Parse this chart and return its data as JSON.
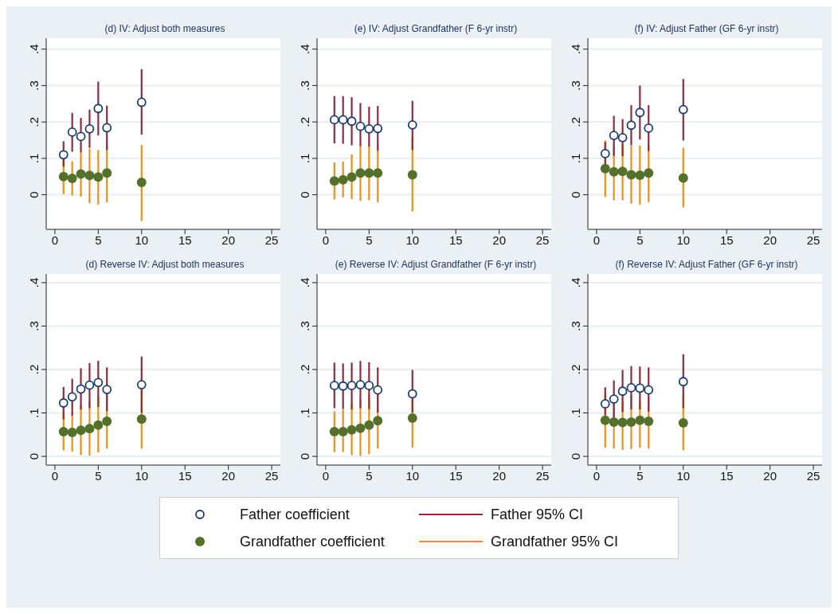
{
  "chart_data": [
    {
      "type": "scatter",
      "title": "(d) IV: Adjust both measures",
      "x": [
        1,
        2,
        3,
        4,
        5,
        6,
        10
      ],
      "xlim": [
        -1,
        26
      ],
      "xticks": [
        0,
        5,
        10,
        15,
        20,
        25
      ],
      "ylim": [
        -0.095,
        0.43
      ],
      "yticks": [
        {
          "value": 0,
          "label": "0"
        },
        {
          "value": 0.1,
          "label": ".1"
        },
        {
          "value": 0.2,
          "label": ".2"
        },
        {
          "value": 0.3,
          "label": ".3"
        },
        {
          "value": 0.4,
          "label": ".4"
        }
      ],
      "grid": "y",
      "marker": "circle",
      "legend": "bottom",
      "annotations": [
        "Father 95% CI",
        "Grandfather 95% CI"
      ],
      "series": [
        {
          "name": "Grandfather coefficient",
          "color": "#55702a",
          "values": [
            0.05,
            0.045,
            0.057,
            0.053,
            0.049,
            0.06,
            0.034
          ],
          "errors": [
            [
              0.002,
              0.096
            ],
            [
              -0.002,
              0.092
            ],
            [
              -0.005,
              0.116
            ],
            [
              -0.023,
              0.127
            ],
            [
              -0.027,
              0.123
            ],
            [
              -0.021,
              0.139
            ],
            [
              -0.072,
              0.137
            ]
          ]
        },
        {
          "name": "Father coefficient",
          "color": "#1d3c6e",
          "values": [
            0.11,
            0.172,
            0.16,
            0.181,
            0.237,
            0.184,
            0.254
          ],
          "errors": [
            [
              0.077,
              0.147
            ],
            [
              0.118,
              0.225
            ],
            [
              0.116,
              0.211
            ],
            [
              0.129,
              0.234
            ],
            [
              0.163,
              0.311
            ],
            [
              0.123,
              0.245
            ],
            [
              0.165,
              0.345
            ]
          ]
        }
      ]
    },
    {
      "type": "scatter",
      "title": "(e) IV: Adjust Grandfather (F 6-yr instr)",
      "x": [
        1,
        2,
        3,
        4,
        5,
        6,
        10
      ],
      "xlim": [
        -1,
        26
      ],
      "xticks": [
        0,
        5,
        10,
        15,
        20,
        25
      ],
      "ylim": [
        -0.095,
        0.43
      ],
      "yticks": [
        {
          "value": 0,
          "label": "0"
        },
        {
          "value": 0.1,
          "label": ".1"
        },
        {
          "value": 0.2,
          "label": ".2"
        },
        {
          "value": 0.3,
          "label": ".3"
        },
        {
          "value": 0.4,
          "label": ".4"
        }
      ],
      "grid": "y",
      "marker": "circle",
      "series": [
        {
          "color": "#55702a",
          "values": [
            0.038,
            0.041,
            0.049,
            0.06,
            0.06,
            0.06,
            0.055
          ],
          "errors": [
            [
              -0.013,
              0.089
            ],
            [
              -0.007,
              0.091
            ],
            [
              -0.012,
              0.111
            ],
            [
              -0.017,
              0.136
            ],
            [
              -0.015,
              0.135
            ],
            [
              -0.021,
              0.141
            ],
            [
              -0.046,
              0.159
            ]
          ]
        },
        {
          "color": "#1d3c6e",
          "values": [
            0.206,
            0.206,
            0.202,
            0.188,
            0.181,
            0.182,
            0.192
          ],
          "errors": [
            [
              0.141,
              0.271
            ],
            [
              0.14,
              0.271
            ],
            [
              0.136,
              0.268
            ],
            [
              0.134,
              0.252
            ],
            [
              0.132,
              0.242
            ],
            [
              0.121,
              0.244
            ],
            [
              0.123,
              0.258
            ]
          ]
        }
      ]
    },
    {
      "type": "scatter",
      "title": "(f) IV: Adjust Father (GF 6-yr instr)",
      "x": [
        1,
        2,
        3,
        4,
        5,
        6,
        10
      ],
      "xlim": [
        -1,
        26
      ],
      "xticks": [
        0,
        5,
        10,
        15,
        20,
        25
      ],
      "ylim": [
        -0.095,
        0.43
      ],
      "yticks": [
        {
          "value": 0,
          "label": "0"
        },
        {
          "value": 0.1,
          "label": ".1"
        },
        {
          "value": 0.2,
          "label": ".2"
        },
        {
          "value": 0.3,
          "label": ".3"
        },
        {
          "value": 0.4,
          "label": ".4"
        }
      ],
      "grid": "y",
      "marker": "circle",
      "series": [
        {
          "color": "#55702a",
          "values": [
            0.072,
            0.063,
            0.064,
            0.055,
            0.054,
            0.06,
            0.046
          ],
          "errors": [
            [
              -0.006,
              0.149
            ],
            [
              -0.015,
              0.138
            ],
            [
              -0.015,
              0.138
            ],
            [
              -0.024,
              0.135
            ],
            [
              -0.027,
              0.135
            ],
            [
              -0.02,
              0.138
            ],
            [
              -0.035,
              0.129
            ]
          ]
        },
        {
          "color": "#1d3c6e",
          "values": [
            0.113,
            0.163,
            0.157,
            0.191,
            0.226,
            0.183,
            0.234
          ],
          "errors": [
            [
              0.08,
              0.145
            ],
            [
              0.107,
              0.217
            ],
            [
              0.106,
              0.208
            ],
            [
              0.136,
              0.246
            ],
            [
              0.152,
              0.3
            ],
            [
              0.12,
              0.246
            ],
            [
              0.149,
              0.318
            ]
          ]
        }
      ]
    },
    {
      "type": "scatter",
      "title": "(d) Reverse IV: Adjust both measures",
      "x": [
        1,
        2,
        3,
        4,
        5,
        6,
        10
      ],
      "xlim": [
        -1,
        26
      ],
      "xticks": [
        0,
        5,
        10,
        15,
        20,
        25
      ],
      "ylim": [
        -0.02,
        0.42
      ],
      "yticks": [
        {
          "value": 0,
          "label": "0"
        },
        {
          "value": 0.1,
          "label": ".1"
        },
        {
          "value": 0.2,
          "label": ".2"
        },
        {
          "value": 0.3,
          "label": ".3"
        },
        {
          "value": 0.4,
          "label": ".4"
        }
      ],
      "grid": "y",
      "marker": "circle",
      "series": [
        {
          "color": "#55702a",
          "values": [
            0.057,
            0.055,
            0.06,
            0.064,
            0.072,
            0.081,
            0.086
          ],
          "errors": [
            [
              0.014,
              0.104
            ],
            [
              0.011,
              0.098
            ],
            [
              0.003,
              0.117
            ],
            [
              0.002,
              0.127
            ],
            [
              0.009,
              0.137
            ],
            [
              0.018,
              0.147
            ],
            [
              0.018,
              0.155
            ]
          ]
        },
        {
          "color": "#1d3c6e",
          "values": [
            0.123,
            0.137,
            0.155,
            0.164,
            0.17,
            0.154,
            0.165
          ],
          "errors": [
            [
              0.085,
              0.16
            ],
            [
              0.094,
              0.179
            ],
            [
              0.108,
              0.203
            ],
            [
              0.111,
              0.215
            ],
            [
              0.114,
              0.22
            ],
            [
              0.104,
              0.205
            ],
            [
              0.1,
              0.23
            ]
          ]
        }
      ]
    },
    {
      "type": "scatter",
      "title": "(e) Reverse IV: Adjust Grandfather (F 6-yr instr)",
      "x": [
        1,
        2,
        3,
        4,
        5,
        6,
        10
      ],
      "xlim": [
        -1,
        26
      ],
      "xticks": [
        0,
        5,
        10,
        15,
        20,
        25
      ],
      "ylim": [
        -0.02,
        0.42
      ],
      "yticks": [
        {
          "value": 0,
          "label": "0"
        },
        {
          "value": 0.1,
          "label": ".1"
        },
        {
          "value": 0.2,
          "label": ".2"
        },
        {
          "value": 0.3,
          "label": ".3"
        },
        {
          "value": 0.4,
          "label": ".4"
        }
      ],
      "grid": "y",
      "marker": "circle",
      "series": [
        {
          "color": "#55702a",
          "values": [
            0.057,
            0.057,
            0.061,
            0.065,
            0.072,
            0.082,
            0.088
          ],
          "errors": [
            [
              0.01,
              0.104
            ],
            [
              0.01,
              0.108
            ],
            [
              0.003,
              0.121
            ],
            [
              0.001,
              0.131
            ],
            [
              0.005,
              0.137
            ],
            [
              0.018,
              0.147
            ],
            [
              0.02,
              0.155
            ]
          ]
        },
        {
          "color": "#1d3c6e",
          "values": [
            0.163,
            0.162,
            0.163,
            0.165,
            0.163,
            0.153,
            0.144
          ],
          "errors": [
            [
              0.111,
              0.216
            ],
            [
              0.109,
              0.214
            ],
            [
              0.108,
              0.216
            ],
            [
              0.111,
              0.22
            ],
            [
              0.109,
              0.217
            ],
            [
              0.101,
              0.205
            ],
            [
              0.101,
              0.199
            ]
          ]
        }
      ]
    },
    {
      "type": "scatter",
      "title": "(f) Reverse IV: Adjust Father (GF 6-yr instr)",
      "x": [
        1,
        2,
        3,
        4,
        5,
        6,
        10
      ],
      "xlim": [
        -1,
        26
      ],
      "xticks": [
        0,
        5,
        10,
        15,
        20,
        25
      ],
      "ylim": [
        -0.02,
        0.42
      ],
      "yticks": [
        {
          "value": 0,
          "label": "0"
        },
        {
          "value": 0.1,
          "label": ".1"
        },
        {
          "value": 0.2,
          "label": ".2"
        },
        {
          "value": 0.3,
          "label": ".3"
        },
        {
          "value": 0.4,
          "label": ".4"
        }
      ],
      "grid": "y",
      "marker": "circle",
      "series": [
        {
          "color": "#55702a",
          "values": [
            0.083,
            0.079,
            0.078,
            0.079,
            0.083,
            0.081,
            0.077
          ],
          "errors": [
            [
              0.02,
              0.144
            ],
            [
              0.018,
              0.137
            ],
            [
              0.015,
              0.127
            ],
            [
              0.017,
              0.14
            ],
            [
              0.02,
              0.127
            ],
            [
              0.018,
              0.137
            ],
            [
              0.014,
              0.141
            ]
          ]
        },
        {
          "color": "#1d3c6e",
          "values": [
            0.121,
            0.132,
            0.15,
            0.158,
            0.157,
            0.153,
            0.172
          ],
          "errors": [
            [
              0.095,
              0.159
            ],
            [
              0.09,
              0.175
            ],
            [
              0.102,
              0.199
            ],
            [
              0.108,
              0.208
            ],
            [
              0.108,
              0.207
            ],
            [
              0.103,
              0.205
            ],
            [
              0.111,
              0.235
            ]
          ]
        }
      ]
    }
  ]
}
